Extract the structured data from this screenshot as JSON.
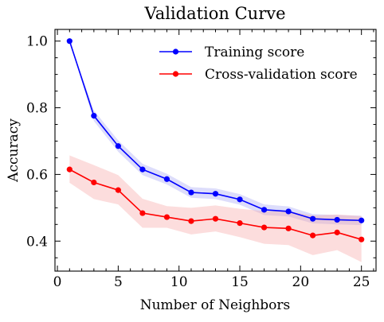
{
  "chart_data": {
    "type": "line",
    "title": "Validation Curve",
    "xlabel": "Number of Neighbors",
    "ylabel": "Accuracy",
    "xlim": [
      -0.2,
      26.2
    ],
    "ylim": [
      0.31,
      1.035
    ],
    "x_ticks": [
      0,
      5,
      10,
      15,
      20,
      25
    ],
    "y_ticks": [
      0.4,
      0.6,
      0.8,
      1.0
    ],
    "x_tick_labels": [
      "0",
      "5",
      "10",
      "15",
      "20",
      "25"
    ],
    "y_tick_labels": [
      "0.4",
      "0.6",
      "0.8",
      "1.0"
    ],
    "x": [
      1,
      3,
      5,
      7,
      9,
      11,
      13,
      15,
      17,
      19,
      21,
      23,
      25
    ],
    "series": [
      {
        "name": "Training score",
        "color": "#0000ff",
        "band_color": "#a9a9f5",
        "values": [
          1.0,
          0.776,
          0.685,
          0.615,
          0.586,
          0.546,
          0.542,
          0.525,
          0.494,
          0.489,
          0.467,
          0.464,
          0.462
        ],
        "upper": [
          1.0,
          0.792,
          0.702,
          0.632,
          0.602,
          0.562,
          0.558,
          0.541,
          0.51,
          0.504,
          0.481,
          0.478,
          0.476
        ],
        "lower": [
          1.0,
          0.76,
          0.668,
          0.598,
          0.57,
          0.53,
          0.526,
          0.509,
          0.478,
          0.474,
          0.453,
          0.45,
          0.448
        ]
      },
      {
        "name": "Cross-validation score",
        "color": "#ff0000",
        "band_color": "#f7a9a9",
        "values": [
          0.615,
          0.576,
          0.553,
          0.484,
          0.472,
          0.46,
          0.467,
          0.454,
          0.441,
          0.438,
          0.417,
          0.426,
          0.405
        ],
        "upper": [
          0.657,
          0.628,
          0.598,
          0.527,
          0.505,
          0.5,
          0.507,
          0.497,
          0.49,
          0.489,
          0.477,
          0.48,
          0.475
        ],
        "lower": [
          0.575,
          0.526,
          0.51,
          0.44,
          0.44,
          0.42,
          0.429,
          0.412,
          0.392,
          0.388,
          0.358,
          0.373,
          0.337
        ]
      }
    ],
    "legend_position": "top-right",
    "grid": false
  }
}
